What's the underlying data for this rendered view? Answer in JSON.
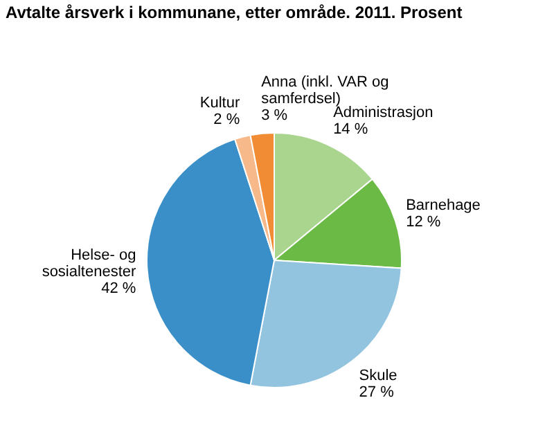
{
  "chart_data": {
    "type": "pie",
    "title": "Avtalte årsverk i kommunane, etter område. 2011. Prosent",
    "categories": [
      "Administrasjon",
      "Barnehage",
      "Skule",
      "Helse- og sosialtenester",
      "Kultur",
      "Anna (inkl. VAR og samferdsel)"
    ],
    "values": [
      14,
      12,
      27,
      42,
      2,
      3
    ],
    "value_labels": [
      "14 %",
      "12 %",
      "27 %",
      "42 %",
      "2 %",
      "3 %"
    ],
    "colors": [
      "#a9d58f",
      "#6bba45",
      "#92c4df",
      "#3a8fc8",
      "#f7b98a",
      "#f28c34"
    ]
  }
}
